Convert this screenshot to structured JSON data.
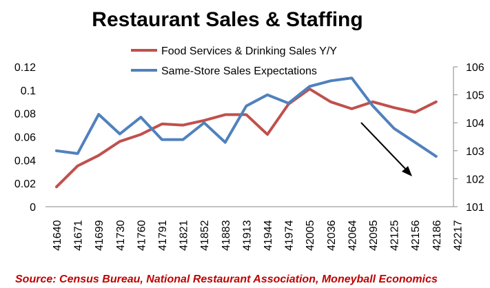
{
  "chart_data": {
    "type": "line",
    "title": "Restaurant Sales & Staffing",
    "source": "Source:  Census Bureau, National Restaurant Association, Moneyball Economics",
    "x": [
      "41640",
      "41671",
      "41699",
      "41730",
      "41760",
      "41791",
      "41821",
      "41852",
      "41883",
      "41913",
      "41944",
      "41974",
      "42005",
      "42036",
      "42064",
      "42095",
      "42125",
      "42156",
      "42186",
      "42217"
    ],
    "y_left_ticks": [
      "0",
      "0.02",
      "0.04",
      "0.06",
      "0.08",
      "0.1",
      "0.12"
    ],
    "y_left_range": [
      0,
      0.12
    ],
    "y_right_ticks": [
      "101",
      "102",
      "103",
      "104",
      "105",
      "106"
    ],
    "y_right_range": [
      101,
      106
    ],
    "series": [
      {
        "name": "Food Services & Drinking Sales Y/Y",
        "axis": "left",
        "color": "#c0504d",
        "values": [
          0.017,
          0.035,
          0.044,
          0.056,
          0.062,
          0.071,
          0.07,
          0.074,
          0.079,
          0.079,
          0.062,
          0.088,
          0.101,
          0.09,
          0.084,
          0.09,
          0.085,
          0.081,
          0.09,
          null
        ]
      },
      {
        "name": "Same-Store Sales Expectations",
        "axis": "right",
        "color": "#4f81bd",
        "values": [
          103.0,
          102.9,
          104.3,
          103.6,
          104.2,
          103.4,
          103.4,
          104.0,
          103.3,
          104.6,
          105.0,
          104.7,
          105.3,
          105.5,
          105.6,
          104.6,
          103.8,
          103.3,
          102.8,
          null
        ]
      }
    ],
    "annotation": "downward-trend-arrow",
    "grid": false,
    "legend_position": "top"
  }
}
